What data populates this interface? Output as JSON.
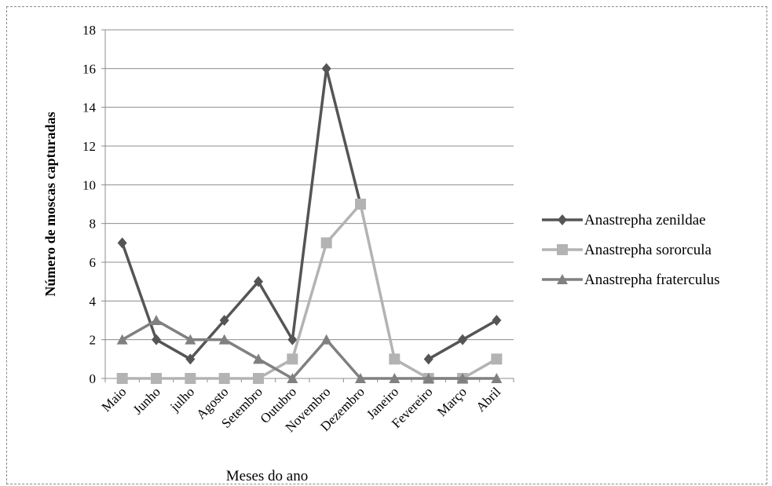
{
  "chart_data": {
    "type": "line",
    "title": "",
    "xlabel": "Meses do ano",
    "ylabel": "Número de moscas capturadas",
    "ylim": [
      0,
      18
    ],
    "yticks": [
      0,
      2,
      4,
      6,
      8,
      10,
      12,
      14,
      16,
      18
    ],
    "grid": true,
    "legend_position": "right",
    "categories": [
      "Maio",
      "Junho",
      "julho",
      "Agosto",
      "Setembro",
      "Outubro",
      "Novembro",
      "Dezembro",
      "Janeiro",
      "Fevereiro",
      "Março",
      "Abril"
    ],
    "series": [
      {
        "name": "Anastrepha zenildae",
        "color": "#555555",
        "marker": "diamond",
        "values": [
          7,
          2,
          1,
          3,
          5,
          2,
          16,
          9,
          null,
          1,
          2,
          3
        ]
      },
      {
        "name": "Anastrepha sororcula",
        "color": "#b3b3b3",
        "marker": "square",
        "values": [
          0,
          0,
          0,
          0,
          0,
          1,
          7,
          9,
          1,
          0,
          0,
          1
        ]
      },
      {
        "name": "Anastrepha fraterculus",
        "color": "#808080",
        "marker": "triangle",
        "values": [
          2,
          3,
          2,
          2,
          1,
          0,
          2,
          0,
          0,
          0,
          0,
          0
        ]
      }
    ]
  }
}
